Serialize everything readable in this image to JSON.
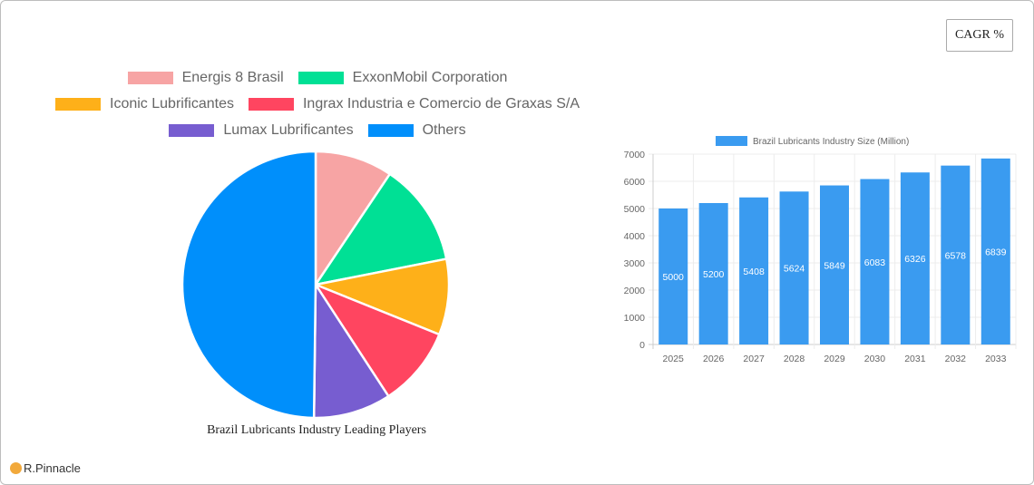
{
  "cagr_button": {
    "label": "CAGR %"
  },
  "brand": {
    "name": "R.Pinnacle"
  },
  "chart_data": [
    {
      "type": "pie",
      "title": "Brazil Lubricants Industry Leading Players",
      "legend_position": "top",
      "categories": [
        "Energis 8 Brasil",
        "ExxonMobil Corporation",
        "Iconic Lubrificantes",
        "Ingrax Industria e Comercio de Graxas S/A",
        "Lumax Lubrificantes",
        "Others"
      ],
      "values": [
        9.4,
        12.5,
        9.2,
        9.7,
        9.4,
        49.8
      ],
      "colors": [
        "#f7a4a4",
        "#00e095",
        "#feb019",
        "#ff4560",
        "#775dd0",
        "#008ffb"
      ]
    },
    {
      "type": "bar",
      "title": "",
      "legend": [
        "Brazil Lubricants Industry Size (Million)"
      ],
      "legend_position": "top",
      "categories": [
        "2025",
        "2026",
        "2027",
        "2028",
        "2029",
        "2030",
        "2031",
        "2032",
        "2033"
      ],
      "series": [
        {
          "name": "Brazil Lubricants Industry Size (Million)",
          "values": [
            5000,
            5200,
            5408,
            5624,
            5849,
            6083,
            6326,
            6578,
            6839
          ]
        }
      ],
      "xlabel": "",
      "ylabel": "",
      "ylim": [
        0,
        7000
      ],
      "yticks": [
        0,
        1000,
        2000,
        3000,
        4000,
        5000,
        6000,
        7000
      ],
      "grid": true,
      "bar_color": "#3a9bf0"
    }
  ],
  "pie_legend_rows": [
    [
      0,
      1
    ],
    [
      2,
      3
    ],
    [
      4,
      5
    ]
  ]
}
